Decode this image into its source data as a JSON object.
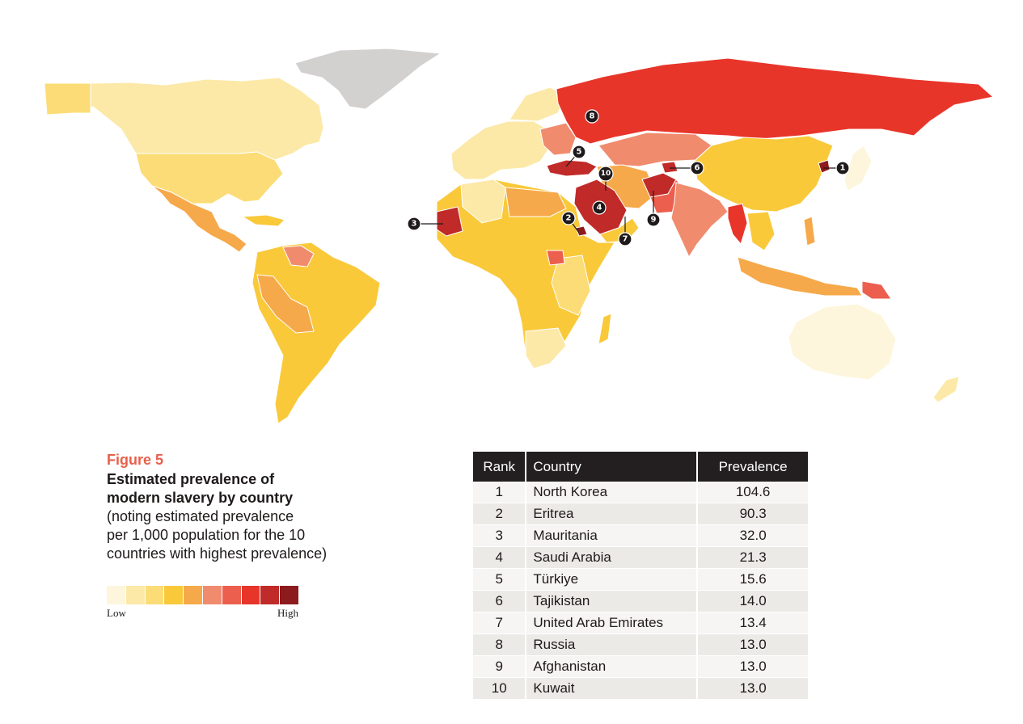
{
  "caption": {
    "figure_label": "Figure 5",
    "title_line1": "Estimated prevalence of",
    "title_line2": "modern slavery by country",
    "note_line1": "(noting estimated prevalence",
    "note_line2": "per 1,000 population for the 10",
    "note_line3": "countries with highest prevalence)"
  },
  "legend": {
    "low_label": "Low",
    "high_label": "High",
    "colors": [
      "#fdf6dc",
      "#fce9a8",
      "#fbdc76",
      "#f9c93a",
      "#f6a94a",
      "#f08b6d",
      "#ec5f4e",
      "#e8352a",
      "#c02a28",
      "#8c1b1e"
    ]
  },
  "map_markers": [
    "1",
    "2",
    "3",
    "4",
    "5",
    "6",
    "7",
    "8",
    "9",
    "10"
  ],
  "table": {
    "headers": {
      "rank": "Rank",
      "country": "Country",
      "prevalence": "Prevalence"
    },
    "rows": [
      {
        "rank": "1",
        "country": "North Korea",
        "prevalence": "104.6"
      },
      {
        "rank": "2",
        "country": "Eritrea",
        "prevalence": "90.3"
      },
      {
        "rank": "3",
        "country": "Mauritania",
        "prevalence": "32.0"
      },
      {
        "rank": "4",
        "country": "Saudi Arabia",
        "prevalence": "21.3"
      },
      {
        "rank": "5",
        "country": "Türkiye",
        "prevalence": "15.6"
      },
      {
        "rank": "6",
        "country": "Tajikistan",
        "prevalence": "14.0"
      },
      {
        "rank": "7",
        "country": "United Arab Emirates",
        "prevalence": "13.4"
      },
      {
        "rank": "8",
        "country": "Russia",
        "prevalence": "13.0"
      },
      {
        "rank": "9",
        "country": "Afghanistan",
        "prevalence": "13.0"
      },
      {
        "rank": "10",
        "country": "Kuwait",
        "prevalence": "13.0"
      }
    ]
  }
}
